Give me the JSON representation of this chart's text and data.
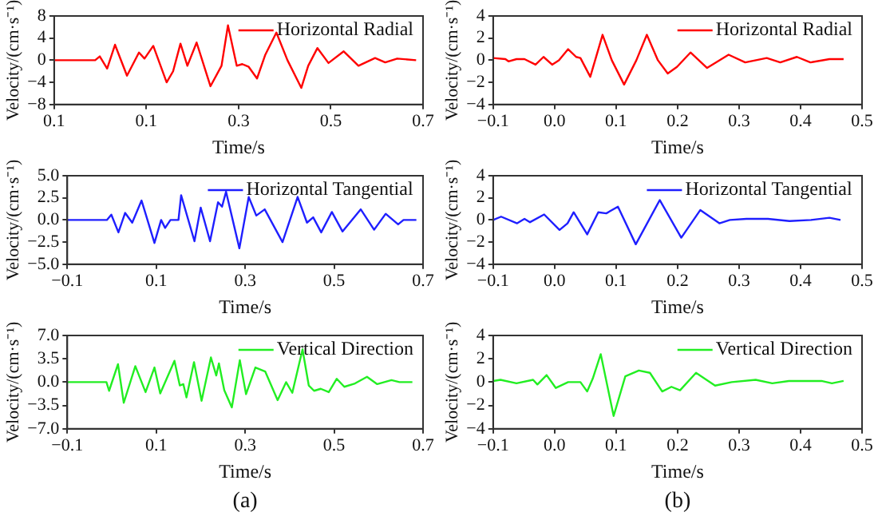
{
  "chart_data": [
    {
      "type": "line",
      "xlabel": "Time/s",
      "ylabel": "Velocity/(cm·s⁻¹)",
      "legend": "top right",
      "grid": false,
      "marker": "none",
      "line_style": "solid",
      "xlim": [
        -0.1,
        0.7
      ],
      "xticks": [
        {
          "value": -0.1,
          "label": "0.1"
        },
        {
          "value": 0.1,
          "label": "0.1"
        },
        {
          "value": 0.3,
          "label": "0.3"
        },
        {
          "value": 0.5,
          "label": "0.5"
        },
        {
          "value": 0.7,
          "label": "0.7"
        }
      ],
      "ylim": [
        -8,
        8
      ],
      "yticks": [
        {
          "value": -8,
          "label": "−8"
        },
        {
          "value": -4,
          "label": "−4"
        },
        0,
        4,
        8
      ],
      "series": [
        {
          "name": "Horizontal Radial",
          "color": "#ff0000",
          "x": [
            -0.1,
            -0.011,
            -0.001,
            0.015,
            0.032,
            0.058,
            0.084,
            0.096,
            0.115,
            0.144,
            0.158,
            0.174,
            0.189,
            0.209,
            0.239,
            0.263,
            0.277,
            0.296,
            0.308,
            0.322,
            0.34,
            0.358,
            0.382,
            0.406,
            0.436,
            0.451,
            0.471,
            0.495,
            0.528,
            0.56,
            0.596,
            0.618,
            0.644,
            0.685
          ],
          "values": [
            0,
            0,
            0.7,
            -1.5,
            2.8,
            -2.8,
            1.4,
            0.3,
            2.6,
            -4,
            -2,
            3,
            -1,
            3.2,
            -4.7,
            -1,
            6.3,
            -1,
            -0.7,
            -1.2,
            -3.3,
            1,
            5,
            0,
            -5,
            -1,
            2.2,
            -0.5,
            1.6,
            -1,
            0.4,
            -0.4,
            0.3,
            0
          ]
        }
      ]
    },
    {
      "type": "line",
      "xlabel": "Time/s",
      "ylabel": "Velocity/(cm·s⁻¹)",
      "legend": "top right",
      "grid": false,
      "marker": "none",
      "line_style": "solid",
      "xlim": [
        -0.1,
        0.5
      ],
      "xticks": [
        {
          "value": -0.1,
          "label": "−0.1"
        },
        {
          "value": 0,
          "label": "0.0"
        },
        0.1,
        0.2,
        0.3,
        0.4,
        0.5
      ],
      "ylim": [
        -4,
        4
      ],
      "yticks": [
        {
          "value": -4,
          "label": "−4"
        },
        {
          "value": -2,
          "label": "−2"
        },
        0,
        2,
        4
      ],
      "series": [
        {
          "name": "Horizontal Radial",
          "color": "#ff0000",
          "x": [
            -0.1,
            -0.08,
            -0.075,
            -0.062,
            -0.049,
            -0.031,
            -0.018,
            -0.004,
            0.007,
            0.022,
            0.035,
            0.042,
            0.058,
            0.078,
            0.093,
            0.113,
            0.133,
            0.15,
            0.168,
            0.184,
            0.199,
            0.221,
            0.248,
            0.283,
            0.31,
            0.345,
            0.367,
            0.394,
            0.416,
            0.447,
            0.47
          ],
          "values": [
            0.2,
            0.1,
            -0.1,
            0.1,
            0.1,
            -0.4,
            0.3,
            -0.4,
            0,
            1,
            0.3,
            0.2,
            -1.5,
            2.3,
            0,
            -2.2,
            0,
            2.3,
            0,
            -1.2,
            -0.6,
            0.7,
            -0.7,
            0.5,
            -0.2,
            0.2,
            -0.2,
            0.3,
            -0.2,
            0.1,
            0.1
          ]
        }
      ]
    },
    {
      "type": "line",
      "xlabel": "Time/s",
      "ylabel": "Velocity/(cm·s⁻¹)",
      "legend": "top right",
      "grid": false,
      "marker": "none",
      "line_style": "solid",
      "xlim": [
        -0.1,
        0.7
      ],
      "xticks": [
        {
          "value": -0.1,
          "label": "−0.1"
        },
        {
          "value": 0.1,
          "label": "0.1"
        },
        {
          "value": 0.3,
          "label": "0.3"
        },
        {
          "value": 0.5,
          "label": "0.5"
        },
        {
          "value": 0.7,
          "label": "0.7"
        }
      ],
      "ylim": [
        -5,
        5
      ],
      "yticks": [
        {
          "value": -5,
          "label": "−5.0"
        },
        {
          "value": -2.5,
          "label": "−2.5"
        },
        {
          "value": 0,
          "label": "0.0"
        },
        2.5,
        {
          "value": 5,
          "label": "5.0"
        }
      ],
      "series": [
        {
          "name": "Horizontal Tangential",
          "color": "#1f1fff",
          "x": [
            -0.1,
            -0.011,
            -0.001,
            0.015,
            0.03,
            0.046,
            0.067,
            0.096,
            0.111,
            0.12,
            0.132,
            0.15,
            0.156,
            0.186,
            0.2,
            0.221,
            0.239,
            0.248,
            0.257,
            0.287,
            0.308,
            0.325,
            0.344,
            0.384,
            0.418,
            0.439,
            0.453,
            0.471,
            0.495,
            0.519,
            0.56,
            0.59,
            0.616,
            0.644,
            0.656,
            0.685
          ],
          "values": [
            0,
            0,
            0.6,
            -1.4,
            0.8,
            -0.3,
            2.2,
            -2.6,
            0,
            -0.9,
            0,
            0,
            2.8,
            -2.4,
            1.4,
            -2.4,
            2,
            1.5,
            3.2,
            -3.2,
            2.6,
            0.5,
            1.2,
            -2.5,
            2.6,
            -0.3,
            0.3,
            -1.4,
            0.9,
            -1.3,
            1.2,
            -1.1,
            0.7,
            -0.5,
            0,
            0
          ]
        }
      ]
    },
    {
      "type": "line",
      "xlabel": "Time/s",
      "ylabel": "Velocity/(cm·s⁻¹)",
      "legend": "top right",
      "grid": false,
      "marker": "none",
      "line_style": "solid",
      "xlim": [
        -0.1,
        0.5
      ],
      "xticks": [
        {
          "value": -0.1,
          "label": "−0.1"
        },
        {
          "value": 0,
          "label": "0.0"
        },
        0.1,
        0.2,
        0.3,
        0.4,
        0.5
      ],
      "ylim": [
        -4,
        4
      ],
      "yticks": [
        {
          "value": -4,
          "label": "−4"
        },
        {
          "value": -2,
          "label": "−2"
        },
        0,
        2,
        4
      ],
      "series": [
        {
          "name": "Horizontal Tangential",
          "color": "#1f1fff",
          "x": [
            -0.1,
            -0.087,
            -0.061,
            -0.049,
            -0.04,
            -0.017,
            0.008,
            0.021,
            0.031,
            0.053,
            0.071,
            0.084,
            0.103,
            0.132,
            0.171,
            0.206,
            0.237,
            0.268,
            0.285,
            0.312,
            0.347,
            0.382,
            0.417,
            0.447,
            0.465
          ],
          "values": [
            0,
            0.3,
            -0.3,
            0.1,
            -0.2,
            0.5,
            -0.9,
            -0.3,
            0.7,
            -1.3,
            0.7,
            0.6,
            1.2,
            -2.2,
            1.8,
            -1.6,
            0.9,
            -0.3,
            0,
            0.1,
            0.1,
            -0.1,
            0,
            0.2,
            0
          ]
        }
      ]
    },
    {
      "type": "line",
      "xlabel": "Time/s",
      "ylabel": "Velocity/(cm·s⁻¹)",
      "legend": "top right",
      "grid": false,
      "marker": "none",
      "line_style": "solid",
      "annotations": [
        "(a)"
      ],
      "xlim": [
        -0.1,
        0.7
      ],
      "xticks": [
        {
          "value": -0.1,
          "label": "−0.1"
        },
        {
          "value": 0.1,
          "label": "0.1"
        },
        {
          "value": 0.3,
          "label": "0.3"
        },
        {
          "value": 0.5,
          "label": "0.5"
        },
        {
          "value": 0.7,
          "label": "0.7"
        }
      ],
      "ylim": [
        -7,
        7
      ],
      "yticks": [
        {
          "value": -7,
          "label": "−7.0"
        },
        {
          "value": -3.5,
          "label": "−3.5"
        },
        {
          "value": 0,
          "label": "0.0"
        },
        3.5,
        {
          "value": 7,
          "label": "7.0"
        }
      ],
      "series": [
        {
          "name": "Vertical Direction",
          "color": "#22ee22",
          "x": [
            -0.1,
            -0.012,
            -0.006,
            0.014,
            0.027,
            0.053,
            0.076,
            0.096,
            0.109,
            0.141,
            0.153,
            0.161,
            0.168,
            0.185,
            0.202,
            0.223,
            0.235,
            0.241,
            0.253,
            0.27,
            0.288,
            0.302,
            0.323,
            0.345,
            0.373,
            0.392,
            0.406,
            0.429,
            0.443,
            0.455,
            0.47,
            0.488,
            0.506,
            0.523,
            0.547,
            0.574,
            0.597,
            0.629,
            0.647,
            0.676
          ],
          "values": [
            0,
            0,
            -1.3,
            2.7,
            -3.1,
            2.4,
            -1.5,
            2.2,
            -1.7,
            3.2,
            -0.5,
            -0.3,
            -2.3,
            3,
            -2.8,
            3.7,
            1,
            2.8,
            -1.2,
            -3.8,
            3.3,
            -1.8,
            2.2,
            1.6,
            -2.7,
            0,
            -1.6,
            4.9,
            -0.5,
            -1.3,
            -1,
            -1.5,
            0.5,
            -0.7,
            -0.2,
            0.8,
            -0.3,
            0.3,
            0,
            0
          ]
        }
      ]
    },
    {
      "type": "line",
      "xlabel": "Time/s",
      "ylabel": "Velocity/(cm·s⁻¹)",
      "legend": "top right",
      "grid": false,
      "marker": "none",
      "line_style": "solid",
      "annotations": [
        "(b)"
      ],
      "xlim": [
        -0.1,
        0.5
      ],
      "xticks": [
        {
          "value": -0.1,
          "label": "−0.1"
        },
        {
          "value": 0,
          "label": "0.0"
        },
        0.1,
        0.2,
        0.3,
        0.4,
        0.5
      ],
      "ylim": [
        -4,
        4
      ],
      "yticks": [
        {
          "value": -4,
          "label": "−4"
        },
        {
          "value": -2,
          "label": "−2"
        },
        0,
        2,
        4
      ],
      "series": [
        {
          "name": "Vertical Direction",
          "color": "#22ee22",
          "x": [
            -0.1,
            -0.088,
            -0.062,
            -0.035,
            -0.028,
            -0.013,
            0.002,
            0.022,
            0.042,
            0.053,
            0.062,
            0.075,
            0.096,
            0.115,
            0.137,
            0.155,
            0.175,
            0.19,
            0.204,
            0.23,
            0.261,
            0.288,
            0.327,
            0.354,
            0.381,
            0.434,
            0.451,
            0.47
          ],
          "values": [
            0.1,
            0.2,
            -0.1,
            0.2,
            -0.2,
            0.6,
            -0.5,
            0,
            0,
            -0.8,
            0.3,
            2.4,
            -2.9,
            0.5,
            1,
            0.8,
            -0.8,
            -0.4,
            -0.7,
            0.8,
            -0.3,
            0,
            0.2,
            -0.1,
            0.1,
            0.1,
            -0.1,
            0.1
          ]
        }
      ]
    }
  ]
}
